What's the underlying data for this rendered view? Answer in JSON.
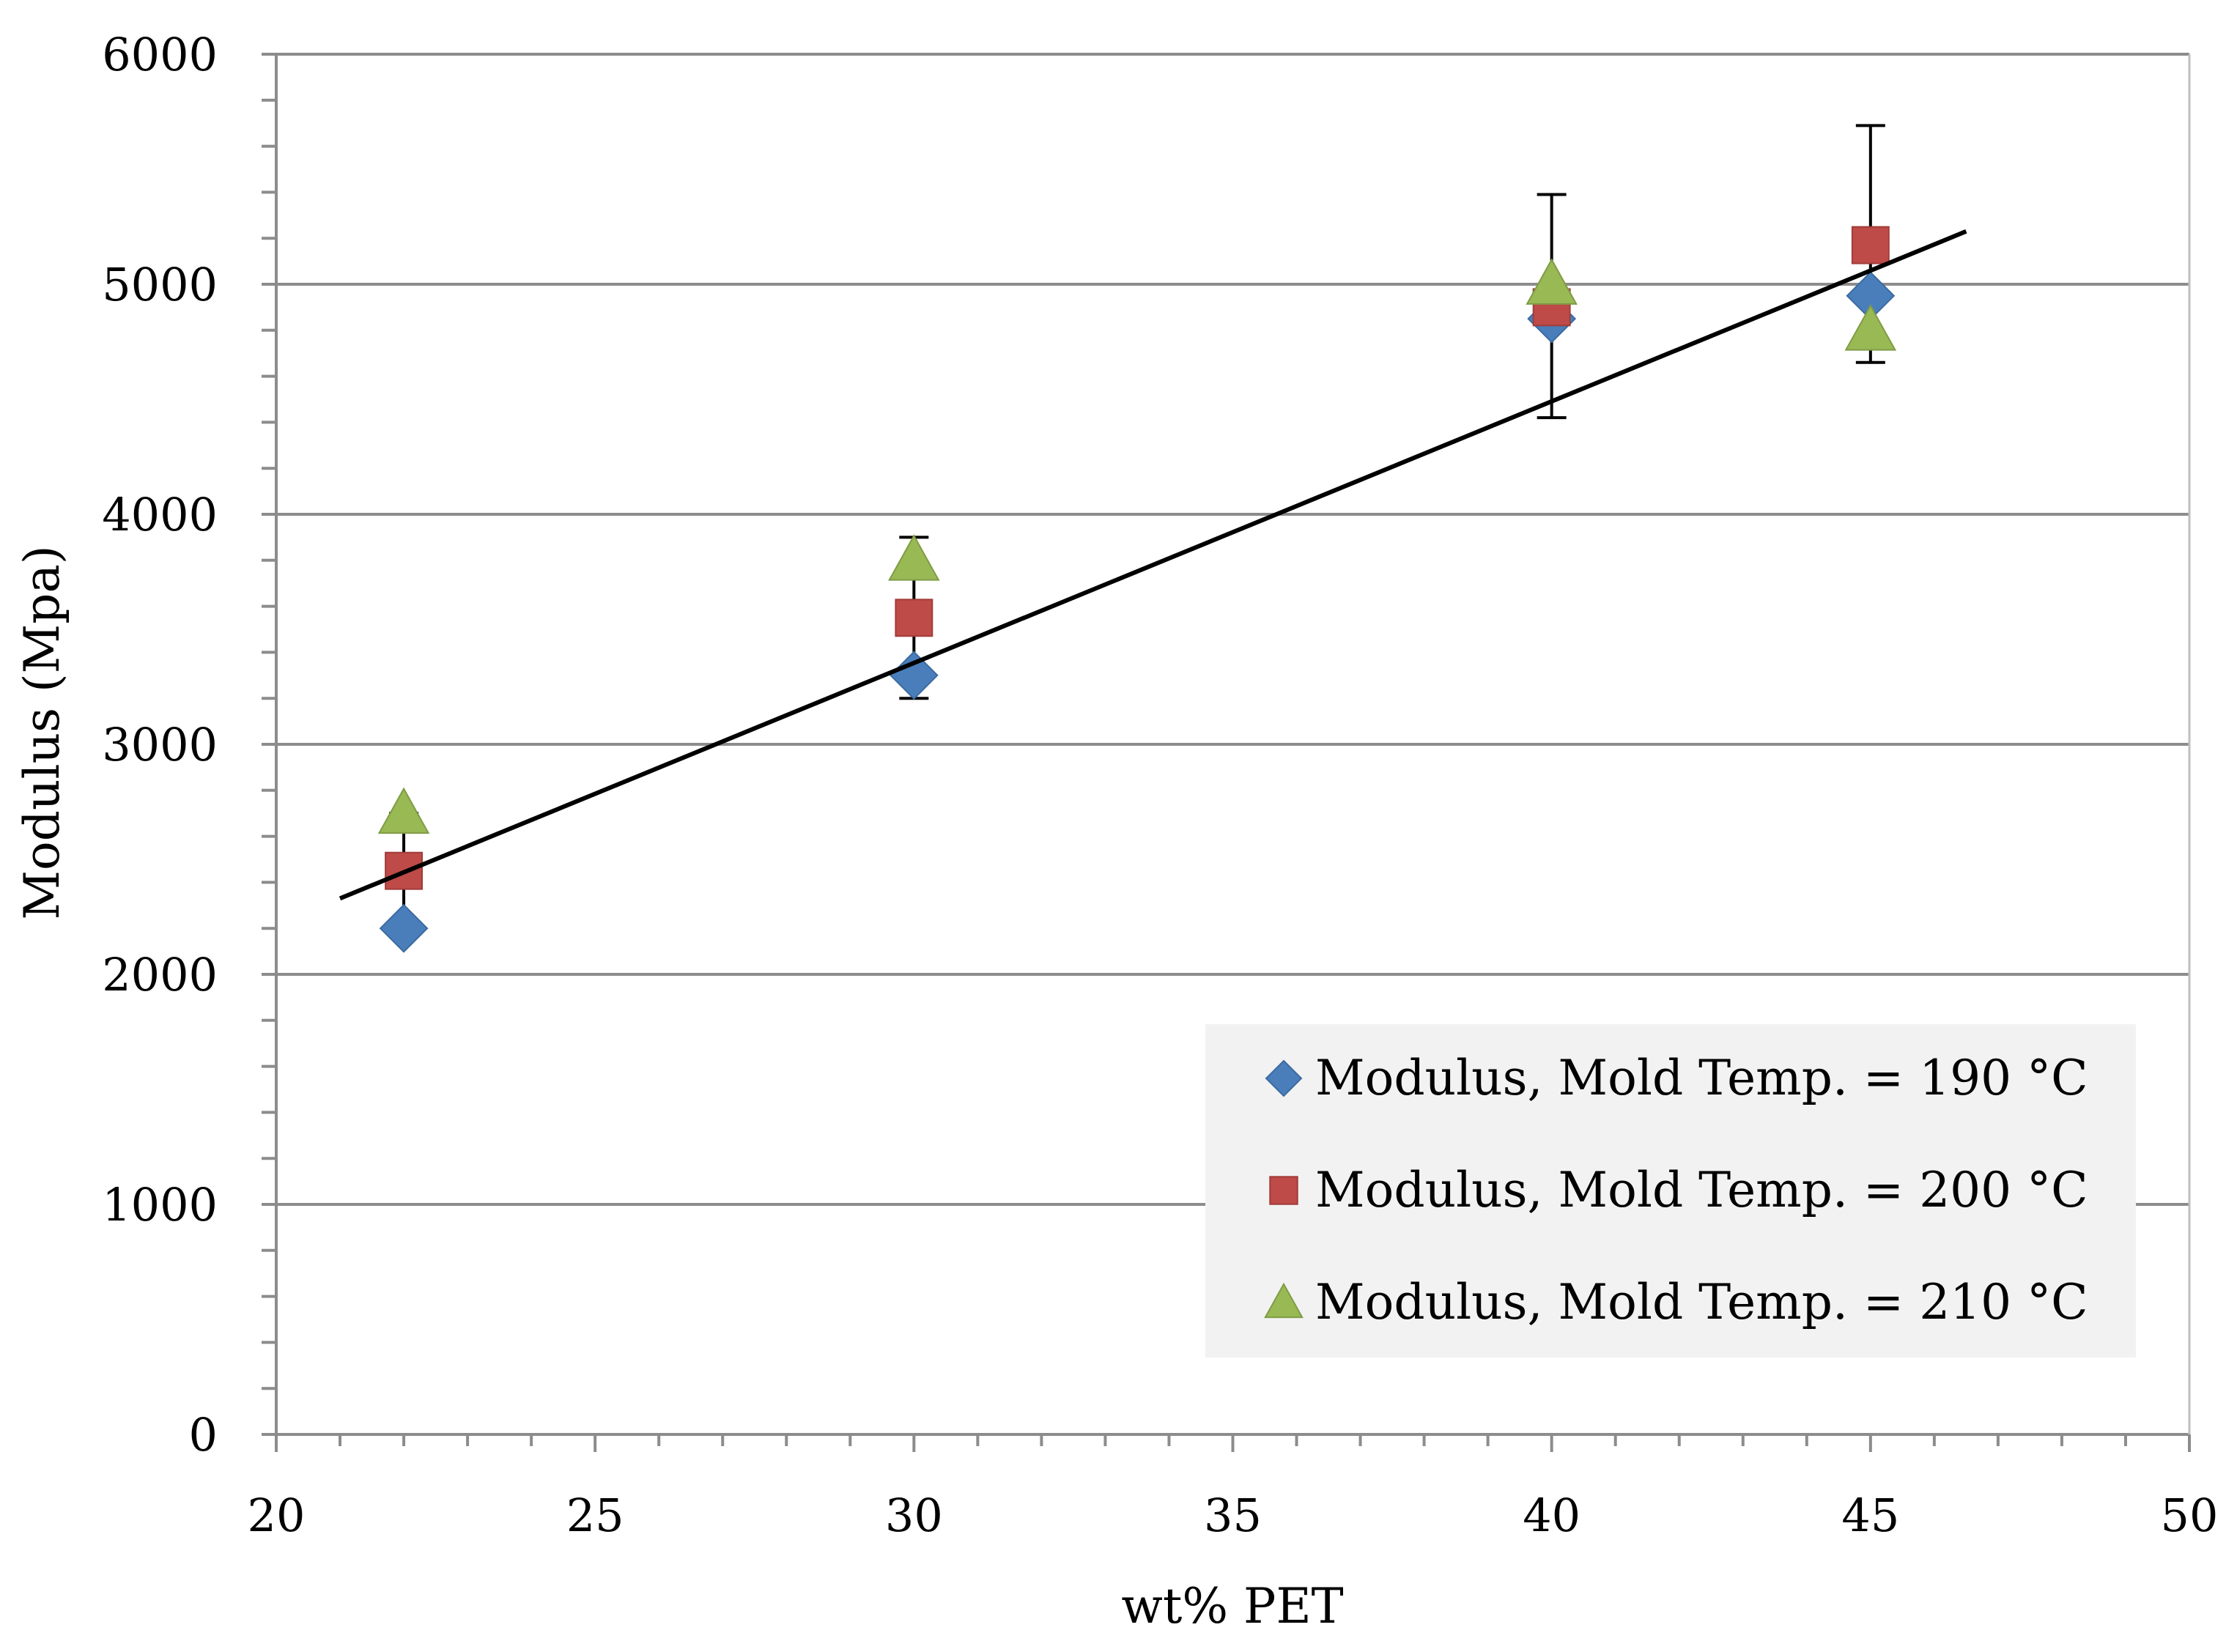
{
  "chart_data": {
    "type": "scatter",
    "title": "",
    "xlabel": "wt% PET",
    "ylabel": "Modulus (Mpa)",
    "xlim": [
      20,
      50
    ],
    "ylim": [
      0,
      6000
    ],
    "x_ticks": [
      20,
      25,
      30,
      35,
      40,
      45,
      50
    ],
    "y_ticks": [
      0,
      1000,
      2000,
      3000,
      4000,
      5000,
      6000
    ],
    "grid": "horizontal major lines",
    "legend_position": "bottom-right",
    "series": [
      {
        "name": "Modulus, Mold Temp. = 190 °C",
        "marker": "diamond",
        "color": "#4a7ebb",
        "x": [
          22,
          30,
          40,
          45
        ],
        "y": [
          2200,
          3300,
          4850,
          4950
        ]
      },
      {
        "name": "Modulus, Mold Temp. = 200 °C",
        "marker": "square",
        "color": "#be4b48",
        "x": [
          22,
          30,
          40,
          45
        ],
        "y": [
          2450,
          3550,
          4900,
          5170
        ]
      },
      {
        "name": "Modulus, Mold Temp. = 210 °C",
        "marker": "triangle",
        "color": "#98b954",
        "x": [
          22,
          30,
          40,
          45
        ],
        "y": [
          2700,
          3800,
          5000,
          4800
        ]
      }
    ],
    "error_bars": [
      {
        "x": 22,
        "low": 2200,
        "high": 2700
      },
      {
        "x": 30,
        "low": 3200,
        "high": 3900
      },
      {
        "x": 40,
        "low": 4420,
        "high": 5390
      },
      {
        "x": 45,
        "low": 4660,
        "high": 5690
      }
    ],
    "trendline": {
      "x": [
        21,
        46.5
      ],
      "y": [
        2330,
        5230
      ]
    }
  }
}
